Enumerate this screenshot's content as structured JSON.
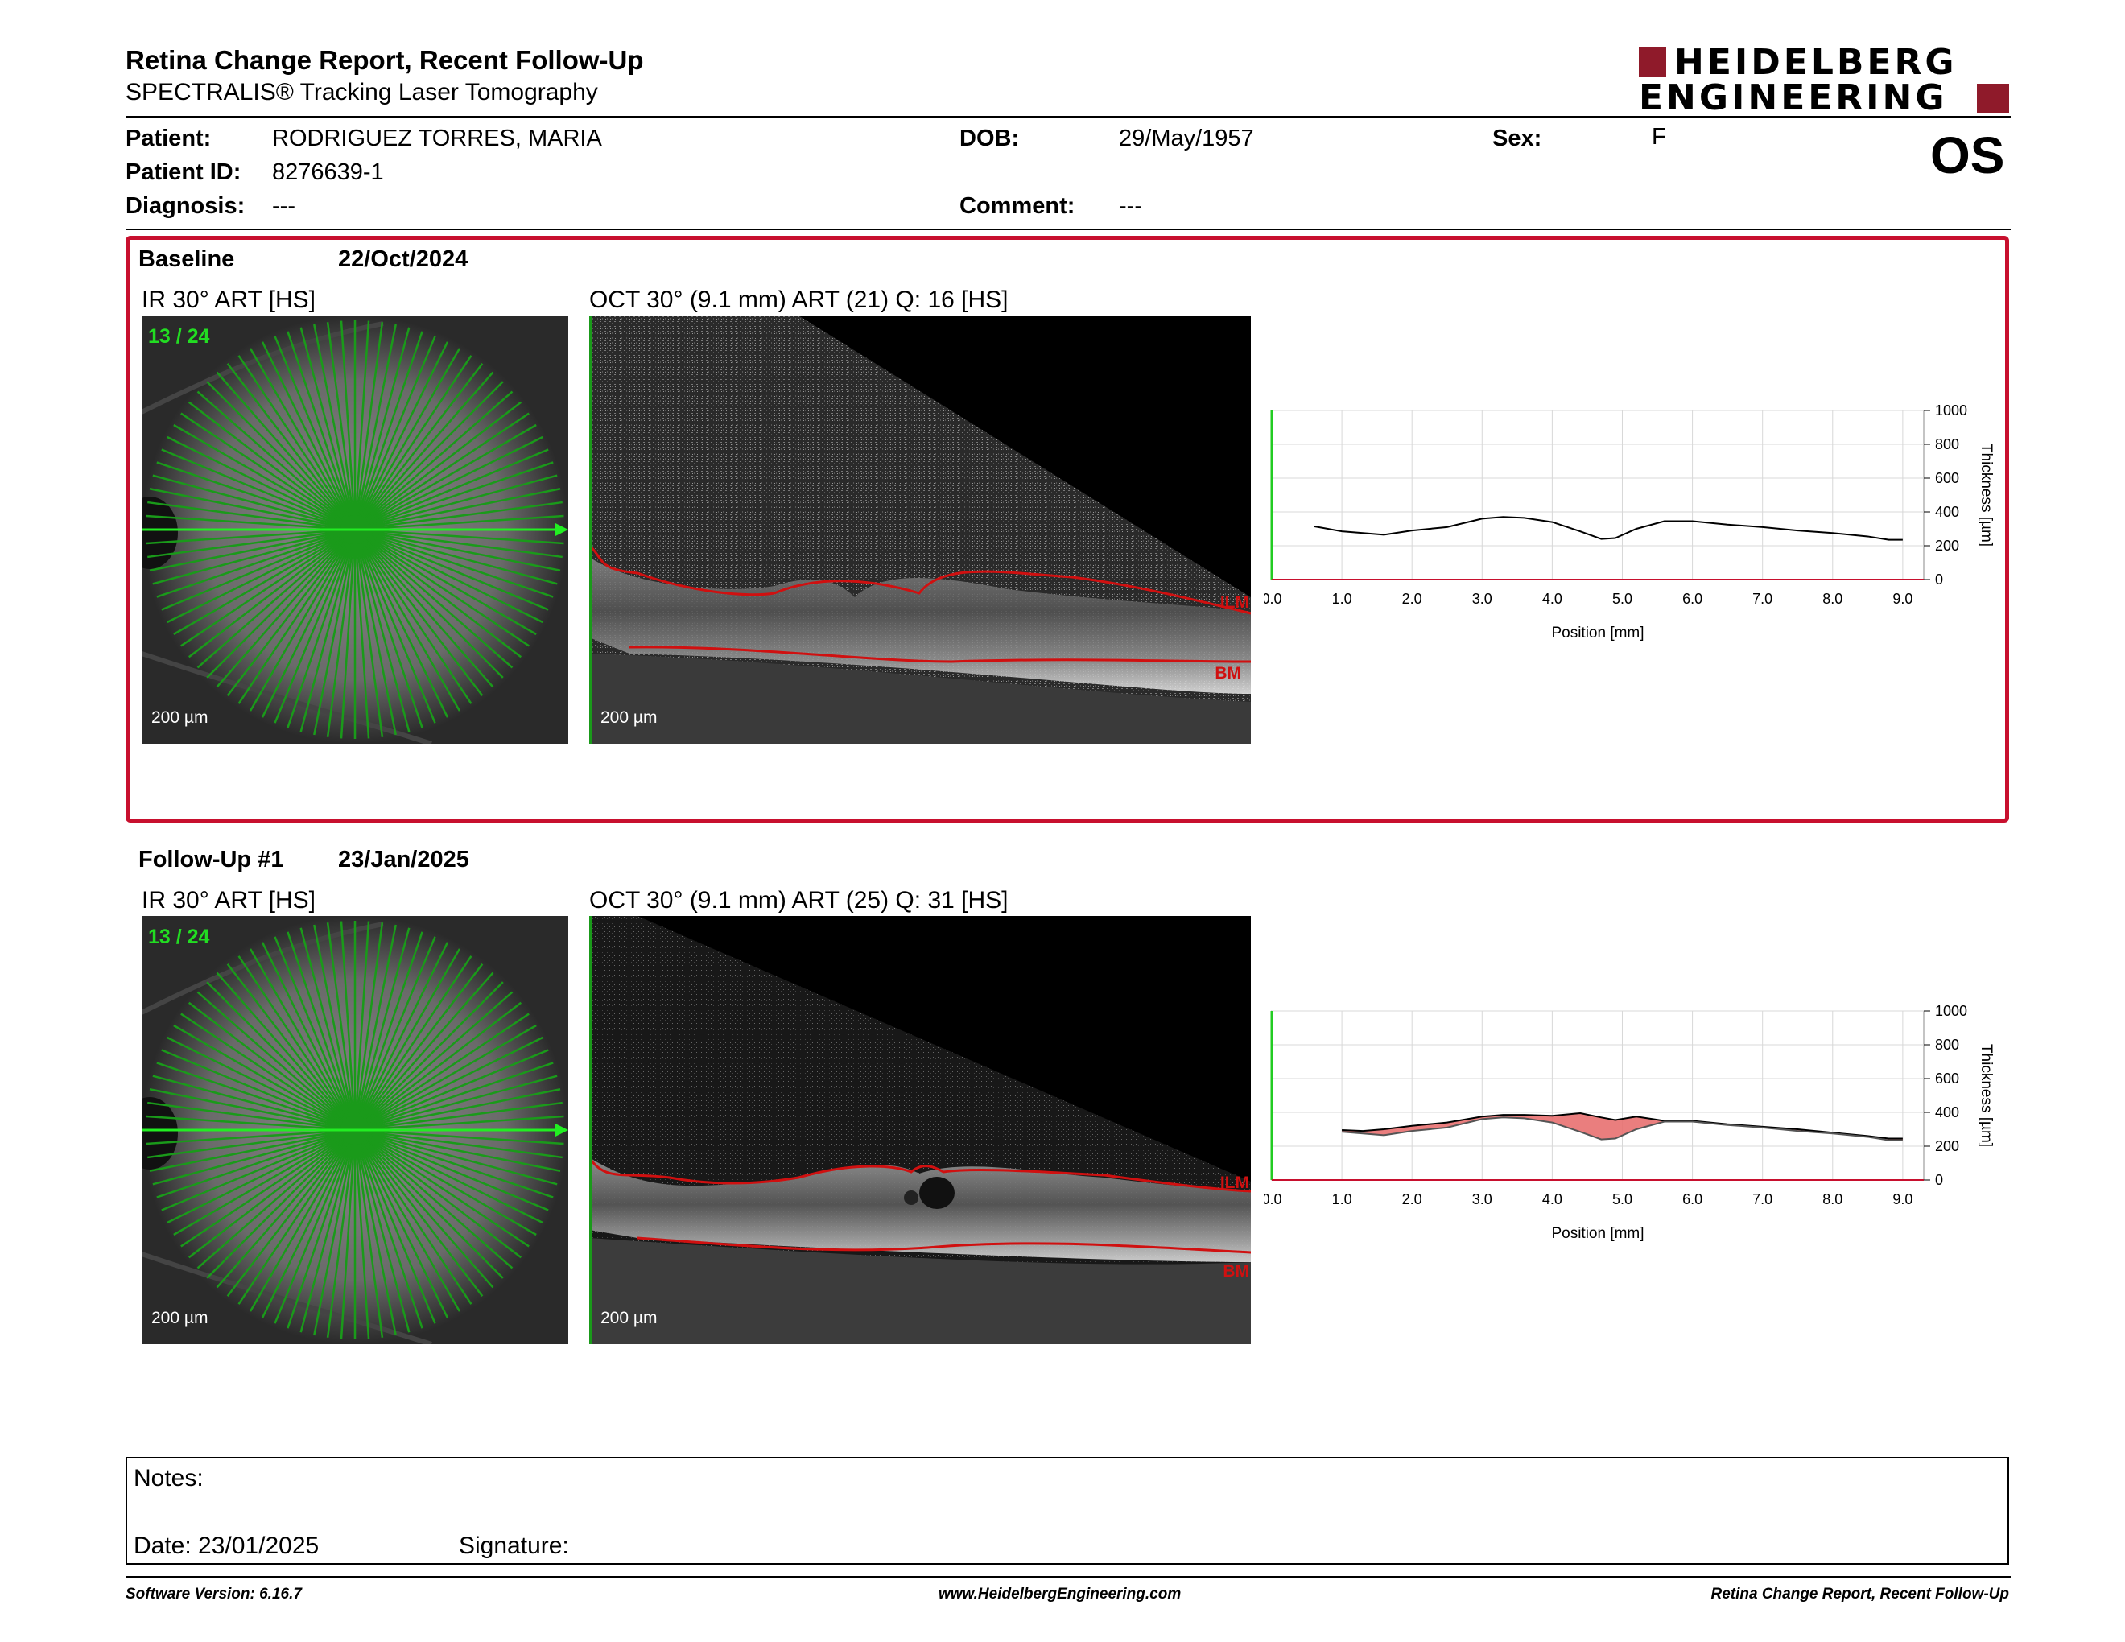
{
  "header": {
    "title": "Retina Change Report, Recent Follow-Up",
    "subtitle": "SPECTRALIS® Tracking Laser Tomography",
    "logo_line1": "HEIDELBERG",
    "logo_line2": "ENGINEERING",
    "eye": "OS"
  },
  "patient": {
    "patient_label": "Patient:",
    "patient_value": "RODRIGUEZ TORRES, MARIA",
    "id_label": "Patient ID:",
    "id_value": "8276639-1",
    "diagnosis_label": "Diagnosis:",
    "diagnosis_value": "---",
    "dob_label": "DOB:",
    "dob_value": "29/May/1957",
    "comment_label": "Comment:",
    "comment_value": "---",
    "sex_label": "Sex:",
    "sex_value": "F"
  },
  "baseline": {
    "label": "Baseline",
    "date": "22/Oct/2024",
    "ir_caption": "IR 30° ART [HS]",
    "ir_counter": "13 / 24",
    "ir_scale": "200 µm",
    "oct_caption": "OCT 30° (9.1 mm) ART (21) Q: 16 [HS]",
    "oct_scale": "200 µm",
    "ilm": "ILM",
    "bm": "BM"
  },
  "followup": {
    "label": "Follow-Up #1",
    "date": "23/Jan/2025",
    "ir_caption": "IR 30° ART [HS]",
    "ir_counter": "13 / 24",
    "ir_scale": "200 µm",
    "oct_caption": "OCT 30° (9.1 mm) ART (25) Q: 31 [HS]",
    "oct_scale": "200 µm",
    "ilm": "ILM",
    "bm": "BM"
  },
  "chart_data": [
    {
      "type": "line",
      "xlabel": "Position [mm]",
      "ylabel": "Thickness [µm]",
      "xlim": [
        0,
        9.3
      ],
      "ylim": [
        0,
        1000
      ],
      "x_ticks": [
        "0.0",
        "1.0",
        "2.0",
        "3.0",
        "4.0",
        "5.0",
        "6.0",
        "7.0",
        "8.0",
        "9.0"
      ],
      "y_ticks": [
        "0",
        "200",
        "400",
        "600",
        "800",
        "1000"
      ],
      "series": [
        {
          "x": [
            0.6,
            1.0,
            1.3,
            1.6,
            2.0,
            2.5,
            3.0,
            3.3,
            3.6,
            4.0,
            4.4,
            4.7,
            4.9,
            5.2,
            5.6,
            6.0,
            6.5,
            7.0,
            7.5,
            8.0,
            8.5,
            8.8,
            9.0
          ],
          "values": [
            315,
            285,
            275,
            265,
            290,
            310,
            360,
            370,
            365,
            340,
            285,
            240,
            245,
            300,
            345,
            345,
            325,
            310,
            290,
            275,
            255,
            235,
            235
          ]
        }
      ]
    },
    {
      "type": "line",
      "xlabel": "Position [mm]",
      "ylabel": "Thickness [µm]",
      "xlim": [
        0,
        9.3
      ],
      "ylim": [
        0,
        1000
      ],
      "x_ticks": [
        "0.0",
        "1.0",
        "2.0",
        "3.0",
        "4.0",
        "5.0",
        "6.0",
        "7.0",
        "8.0",
        "9.0"
      ],
      "y_ticks": [
        "0",
        "200",
        "400",
        "600",
        "800",
        "1000"
      ],
      "series": [
        {
          "x": [
            1.0,
            1.3,
            1.6,
            2.0,
            2.5,
            3.0,
            3.3,
            3.6,
            4.0,
            4.4,
            4.7,
            4.9,
            5.2,
            5.6,
            6.0,
            6.5,
            7.0,
            7.5,
            8.0,
            8.5,
            8.8,
            9.0
          ],
          "values": [
            295,
            290,
            300,
            320,
            340,
            375,
            385,
            385,
            380,
            395,
            370,
            355,
            375,
            350,
            350,
            330,
            315,
            300,
            280,
            260,
            245,
            245
          ]
        },
        {
          "x": [
            1.0,
            1.3,
            1.6,
            2.0,
            2.5,
            3.0,
            3.3,
            3.6,
            4.0,
            4.4,
            4.7,
            4.9,
            5.2,
            5.6,
            6.0,
            6.5,
            7.0,
            7.5,
            8.0,
            8.5,
            8.8,
            9.0
          ],
          "values": [
            285,
            275,
            265,
            290,
            310,
            360,
            370,
            365,
            340,
            285,
            240,
            245,
            300,
            345,
            345,
            325,
            310,
            290,
            275,
            255,
            235,
            235
          ]
        }
      ]
    }
  ],
  "notes": {
    "notes_label": "Notes:",
    "date_label": "Date: 23/01/2025",
    "signature_label": "Signature:"
  },
  "footer": {
    "version": "Software Version: 6.16.7",
    "website": "www.HeidelbergEngineering.com",
    "report_name": "Retina Change Report, Recent Follow-Up"
  },
  "colors": {
    "brand": "#8f1a2a",
    "frame": "#c8102e",
    "scan_green": "#1a9a1a",
    "segmentation": "#d01010",
    "change_fill": "#e87070"
  }
}
